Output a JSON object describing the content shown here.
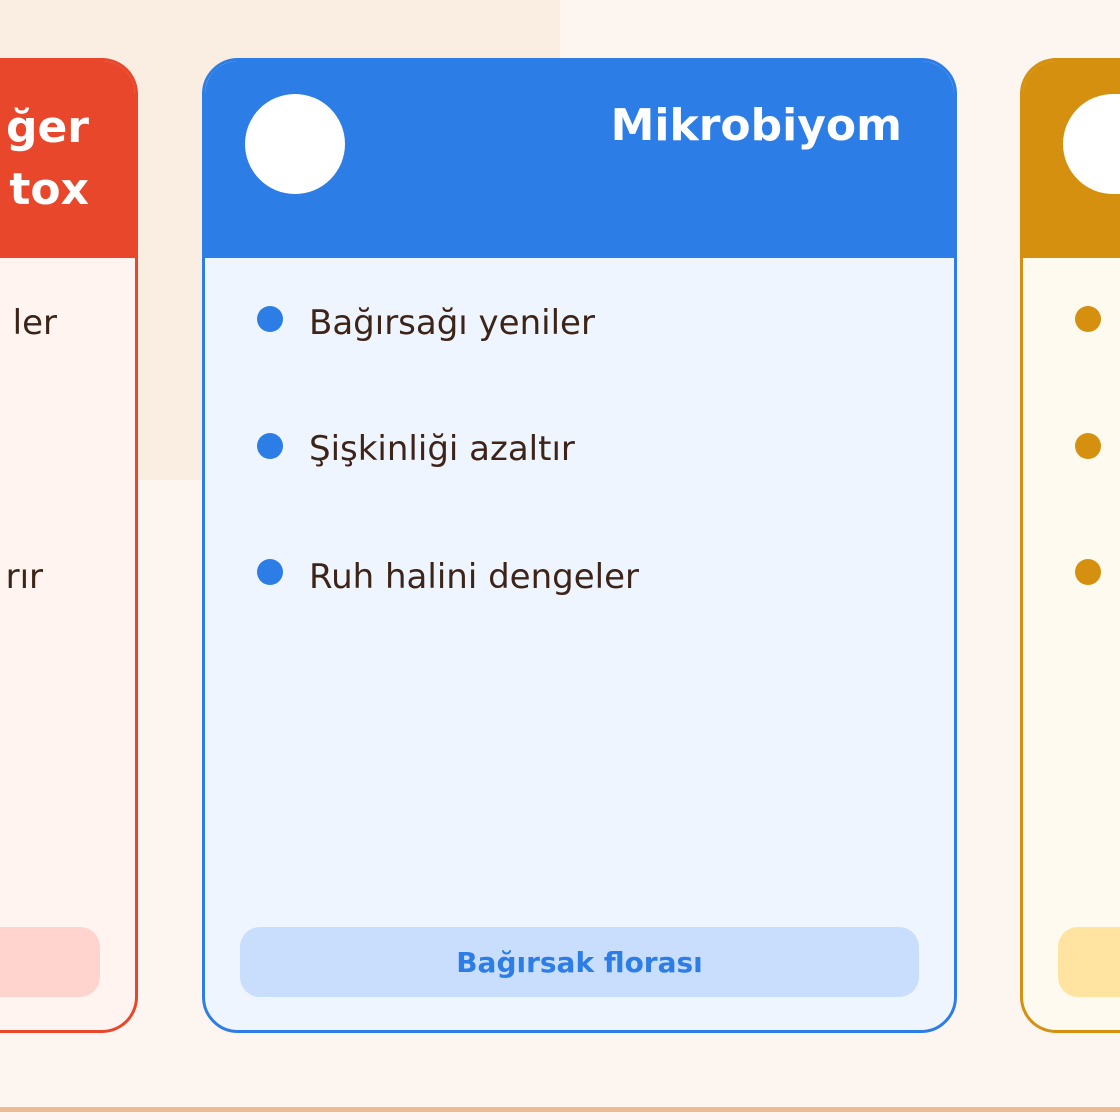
{
  "colors": {
    "red": "#e8472b",
    "blue": "#2d7de6",
    "orange": "#d4900e",
    "text": "#3d2418"
  },
  "cards": [
    {
      "title_lines": [
        "ğer",
        "tox"
      ],
      "items": [
        "ler",
        "",
        "rır"
      ],
      "tag": ""
    },
    {
      "title": "Mikrobiyom",
      "items": [
        "Bağırsağı yeniler",
        "Şişkinliği azaltır",
        "Ruh halini dengeler"
      ],
      "tag": "Bağırsak florası",
      "icon": "circle-icon"
    },
    {
      "title": "",
      "items": [
        "",
        "",
        ""
      ],
      "tag": ""
    }
  ]
}
